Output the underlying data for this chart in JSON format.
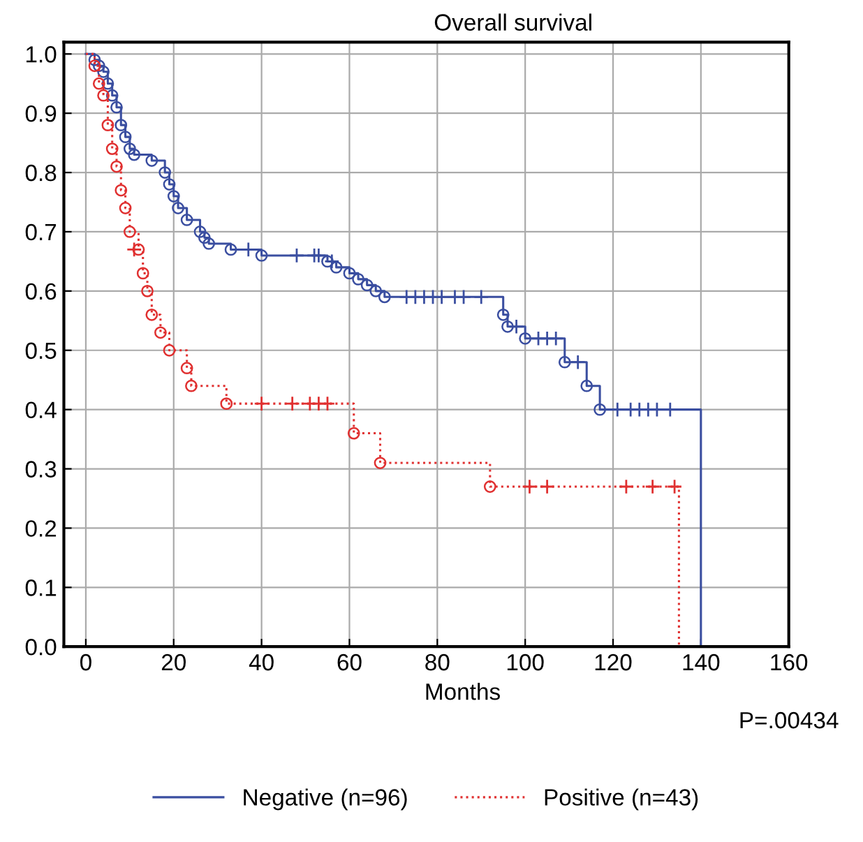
{
  "chart_data": {
    "type": "step",
    "title": "Overall survival",
    "xlabel": "Months",
    "annotations": [
      "P=.00434"
    ],
    "xlim": [
      -5,
      160
    ],
    "xticks": [
      0,
      20,
      40,
      60,
      80,
      100,
      120,
      140,
      160
    ],
    "ylim": [
      0,
      1.02
    ],
    "yticks": [
      {
        "value": 0,
        "label": "0.0"
      },
      0.1,
      0.2,
      0.3,
      0.4,
      0.5,
      0.6,
      0.7,
      0.8,
      0.9,
      {
        "value": 1,
        "label": "1.0"
      }
    ],
    "grid": true,
    "legend": "bottom",
    "series": [
      {
        "name": "Negative (n=96)",
        "color": "#3a4ea0",
        "line_style": "solid",
        "marker": "circle",
        "x": [
          0,
          2,
          3,
          4,
          5,
          6,
          7,
          8,
          9,
          10,
          11,
          15,
          18,
          19,
          20,
          21,
          23,
          26,
          27,
          28,
          33,
          40,
          55,
          57,
          60,
          62,
          64,
          66,
          68,
          95,
          96,
          100,
          109,
          114,
          117,
          140
        ],
        "values": [
          1.0,
          0.99,
          0.98,
          0.97,
          0.95,
          0.93,
          0.91,
          0.88,
          0.86,
          0.84,
          0.83,
          0.82,
          0.8,
          0.78,
          0.76,
          0.74,
          0.72,
          0.7,
          0.69,
          0.68,
          0.67,
          0.66,
          0.65,
          0.64,
          0.63,
          0.62,
          0.61,
          0.6,
          0.59,
          0.56,
          0.54,
          0.52,
          0.48,
          0.44,
          0.4,
          0.0
        ]
      },
      {
        "name": "Positive (n=43)",
        "color": "#e03030",
        "line_style": "dotted",
        "marker": "circle",
        "x": [
          0,
          2,
          3,
          4,
          5,
          6,
          7,
          8,
          9,
          10,
          12,
          13,
          14,
          15,
          17,
          19,
          23,
          24,
          32,
          61,
          67,
          92,
          135
        ],
        "values": [
          1.0,
          0.98,
          0.95,
          0.93,
          0.88,
          0.84,
          0.81,
          0.77,
          0.74,
          0.7,
          0.67,
          0.63,
          0.6,
          0.56,
          0.53,
          0.5,
          0.47,
          0.44,
          0.41,
          0.36,
          0.31,
          0.27,
          0.0
        ]
      },
      {
        "type": "scatter",
        "color": "#3a4ea0",
        "x": [
          37,
          48,
          52,
          53,
          56,
          73,
          75,
          77,
          79,
          81,
          84,
          86,
          90,
          98,
          103,
          105,
          107,
          112,
          121,
          124,
          126,
          128,
          130,
          133
        ],
        "values": [
          0.67,
          0.66,
          0.66,
          0.66,
          0.65,
          0.59,
          0.59,
          0.59,
          0.59,
          0.59,
          0.59,
          0.59,
          0.59,
          0.54,
          0.52,
          0.52,
          0.52,
          0.48,
          0.4,
          0.4,
          0.4,
          0.4,
          0.4,
          0.4
        ]
      },
      {
        "type": "scatter",
        "color": "#e03030",
        "x": [
          11,
          40,
          47,
          51,
          53,
          55,
          101,
          105,
          123,
          129,
          134
        ],
        "values": [
          0.67,
          0.41,
          0.41,
          0.41,
          0.41,
          0.41,
          0.27,
          0.27,
          0.27,
          0.27,
          0.27
        ]
      }
    ]
  }
}
